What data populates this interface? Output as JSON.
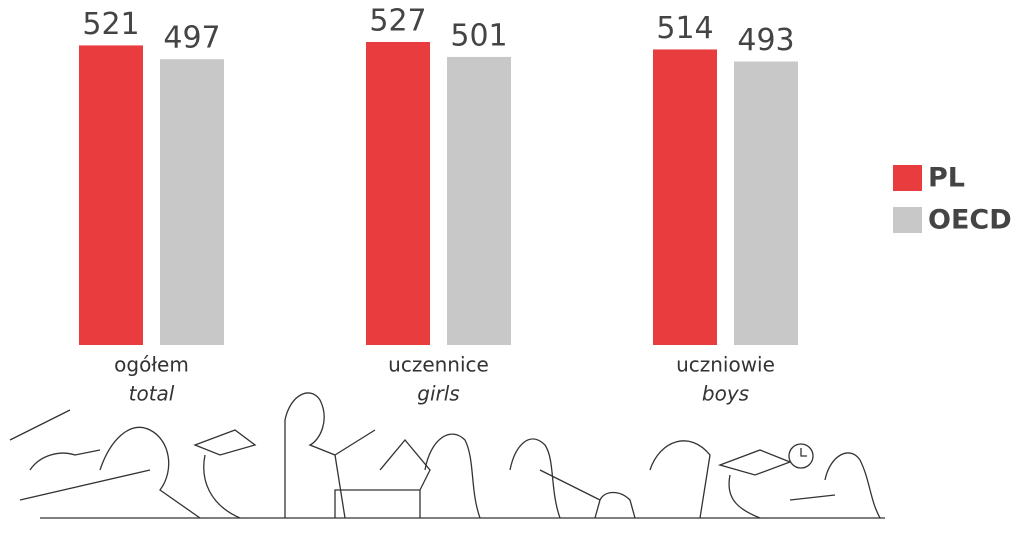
{
  "chart_data": {
    "type": "bar",
    "categories": [
      "ogółem",
      "uczennice",
      "uczniowie"
    ],
    "categories_en": [
      "total",
      "girls",
      "boys"
    ],
    "series": [
      {
        "name": "PL",
        "color": "#e83c3e",
        "values": [
          521,
          527,
          514
        ]
      },
      {
        "name": "OECD",
        "color": "#c8c8c8",
        "values": [
          497,
          501,
          493
        ]
      }
    ],
    "ylim": [
      0,
      600
    ],
    "legend": "right"
  }
}
